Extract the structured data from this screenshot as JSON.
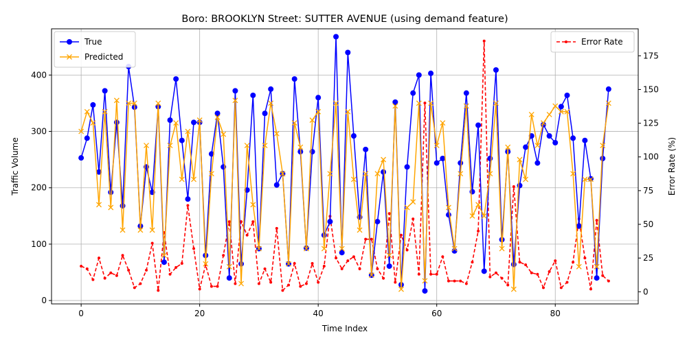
{
  "chart_data": {
    "type": "line",
    "title": "Boro: BROOKLYN Street: SUTTER AVENUE (using demand feature)",
    "xlabel": "Time Index",
    "ylabel": "Traffic Volume",
    "ylabel_right": "Error Rate (%)",
    "xlim": [
      -5,
      94
    ],
    "ylim": [
      -6,
      482
    ],
    "ylim_right": [
      -9,
      195
    ],
    "x_ticks": [
      0,
      20,
      40,
      60,
      80
    ],
    "y_ticks": [
      0,
      100,
      200,
      300,
      400
    ],
    "y_right_ticks": [
      0,
      25,
      50,
      75,
      100,
      125,
      150,
      175
    ],
    "grid": true,
    "legend_left": "upper-left",
    "legend_right": "upper-right",
    "x": [
      0,
      1,
      2,
      3,
      4,
      5,
      6,
      7,
      8,
      9,
      10,
      11,
      12,
      13,
      14,
      15,
      16,
      17,
      18,
      19,
      20,
      21,
      22,
      23,
      24,
      25,
      26,
      27,
      28,
      29,
      30,
      31,
      32,
      33,
      34,
      35,
      36,
      37,
      38,
      39,
      40,
      41,
      42,
      43,
      44,
      45,
      46,
      47,
      48,
      49,
      50,
      51,
      52,
      53,
      54,
      55,
      56,
      57,
      58,
      59,
      60,
      61,
      62,
      63,
      64,
      65,
      66,
      67,
      68,
      69,
      70,
      71,
      72,
      73,
      74,
      75,
      76,
      77,
      78,
      79,
      80,
      81,
      82,
      83,
      84,
      85,
      86,
      87,
      88,
      89
    ],
    "series": [
      {
        "name": "True",
        "axis": "left",
        "color": "#0000ff",
        "marker": "circle",
        "values": [
          253,
          288,
          347,
          228,
          372,
          192,
          316,
          168,
          415,
          343,
          132,
          237,
          192,
          344,
          68,
          320,
          393,
          284,
          180,
          316,
          316,
          80,
          260,
          332,
          237,
          40,
          372,
          65,
          196,
          364,
          92,
          332,
          375,
          205,
          225,
          65,
          393,
          264,
          93,
          264,
          360,
          116,
          140,
          468,
          85,
          440,
          292,
          148,
          268,
          45,
          140,
          228,
          61,
          352,
          28,
          237,
          368,
          400,
          17,
          403,
          244,
          252,
          152,
          88,
          244,
          368,
          193,
          311,
          52,
          252,
          409,
          108,
          264,
          64,
          204,
          272,
          292,
          244,
          312,
          292,
          280,
          344,
          364,
          288,
          132,
          284,
          216,
          40,
          252,
          375
        ]
      },
      {
        "name": "Predicted",
        "axis": "left",
        "color": "#ffa500",
        "marker": "x",
        "values": [
          300,
          335,
          315,
          170,
          335,
          165,
          355,
          125,
          350,
          350,
          125,
          275,
          125,
          350,
          80,
          275,
          315,
          215,
          300,
          215,
          320,
          65,
          225,
          325,
          295,
          60,
          355,
          30,
          275,
          170,
          92,
          275,
          350,
          296,
          225,
          65,
          315,
          272,
          92,
          320,
          335,
          92,
          225,
          350,
          92,
          335,
          215,
          125,
          225,
          45,
          225,
          250,
          80,
          345,
          20,
          165,
          175,
          350,
          35,
          350,
          275,
          315,
          165,
          92,
          225,
          345,
          150,
          170,
          150,
          225,
          350,
          92,
          272,
          20,
          250,
          215,
          330,
          275,
          315,
          330,
          345,
          335,
          335,
          225,
          60,
          215,
          215,
          60,
          275,
          350
        ]
      },
      {
        "name": "Error Rate",
        "axis": "right",
        "color": "#ff0000",
        "marker": "dot",
        "dashed": true,
        "values": [
          19,
          17,
          9,
          25,
          10,
          14,
          12,
          27,
          16,
          3,
          6,
          16,
          36,
          1,
          44,
          13,
          18,
          21,
          64,
          32,
          2,
          20,
          4,
          4,
          27,
          52,
          6,
          52,
          42,
          52,
          6,
          17,
          7,
          47,
          1,
          5,
          21,
          4,
          6,
          21,
          7,
          19,
          56,
          25,
          17,
          23,
          26,
          17,
          39,
          39,
          17,
          10,
          58,
          7,
          42,
          31,
          54,
          13,
          140,
          13,
          13,
          26,
          8,
          8,
          8,
          6,
          22,
          45,
          186,
          11,
          14,
          10,
          5,
          78,
          22,
          20,
          14,
          13,
          3,
          15,
          23,
          3,
          7,
          22,
          54,
          25,
          2,
          53,
          12,
          8
        ]
      }
    ]
  }
}
